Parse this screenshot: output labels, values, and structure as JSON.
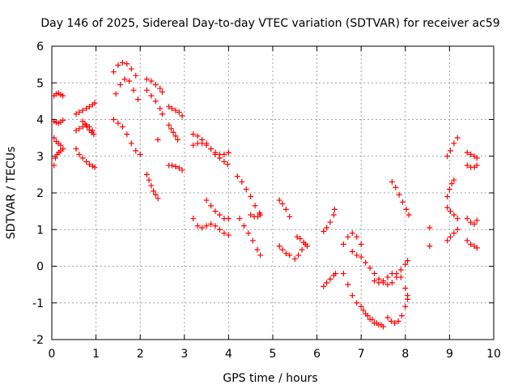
{
  "chart_data": {
    "type": "scatter",
    "title": "Day 146 of 2025, Sidereal Day-to-day VTEC variation (SDTVAR) for receiver ac59",
    "xlabel": "GPS time / hours",
    "ylabel": "SDTVAR / TECUs",
    "xlim": [
      0,
      10
    ],
    "ylim": [
      -2,
      6
    ],
    "xticks": [
      "0",
      "1",
      "2",
      "3",
      "4",
      "5",
      "6",
      "7",
      "8",
      "9",
      "10"
    ],
    "yticks": [
      "-2",
      "-1",
      "0",
      "1",
      "2",
      "3",
      "4",
      "5",
      "6"
    ],
    "grid": true,
    "marker": "plus",
    "color": "#ff0000",
    "segments": [
      {
        "x": [
          0.05,
          0.1,
          0.15,
          0.2,
          0.25
        ],
        "y": [
          4.65,
          4.7,
          4.72,
          4.68,
          4.65
        ]
      },
      {
        "x": [
          0.05,
          0.1,
          0.15,
          0.2,
          0.25
        ],
        "y": [
          3.95,
          3.92,
          3.9,
          3.93,
          3.98
        ]
      },
      {
        "x": [
          0.05,
          0.1,
          0.15,
          0.2,
          0.25
        ],
        "y": [
          3.5,
          3.4,
          3.35,
          3.3,
          3.2
        ]
      },
      {
        "x": [
          0.05,
          0.08,
          0.12,
          0.16,
          0.2,
          0.25
        ],
        "y": [
          2.75,
          2.95,
          3.05,
          3.1,
          3.15,
          3.2
        ]
      },
      {
        "x": [
          0.55,
          0.62,
          0.7,
          0.78,
          0.85,
          0.92,
          0.97
        ],
        "y": [
          4.15,
          4.2,
          4.25,
          4.3,
          4.35,
          4.4,
          4.45
        ]
      },
      {
        "x": [
          0.55,
          0.62,
          0.7,
          0.78,
          0.85,
          0.92
        ],
        "y": [
          3.7,
          3.75,
          3.8,
          3.85,
          3.8,
          3.7
        ]
      },
      {
        "x": [
          0.55,
          0.62,
          0.7,
          0.78,
          0.85,
          0.92,
          0.97
        ],
        "y": [
          3.2,
          3.05,
          2.95,
          2.85,
          2.78,
          2.73,
          2.7
        ]
      },
      {
        "x": [
          0.7,
          0.75,
          0.8,
          0.85,
          0.9,
          0.95
        ],
        "y": [
          3.95,
          3.88,
          3.8,
          3.72,
          3.65,
          3.6
        ]
      },
      {
        "x": [
          1.4,
          1.5,
          1.6,
          1.7,
          1.8,
          1.9
        ],
        "y": [
          5.3,
          5.48,
          5.55,
          5.52,
          5.38,
          5.2
        ]
      },
      {
        "x": [
          1.45,
          1.55,
          1.65,
          1.75,
          1.85,
          1.95
        ],
        "y": [
          4.7,
          4.95,
          5.1,
          5.05,
          4.8,
          4.55
        ]
      },
      {
        "x": [
          1.4,
          1.5,
          1.6,
          1.7,
          1.8,
          1.9,
          2.0
        ],
        "y": [
          4.0,
          3.9,
          3.8,
          3.6,
          3.35,
          3.15,
          3.05
        ]
      },
      {
        "x": [
          2.15,
          2.25,
          2.35,
          2.45,
          2.5
        ],
        "y": [
          5.1,
          5.05,
          4.95,
          4.85,
          4.75
        ]
      },
      {
        "x": [
          2.15,
          2.25,
          2.35,
          2.45,
          2.5
        ],
        "y": [
          4.8,
          4.65,
          4.5,
          4.3,
          4.15
        ]
      },
      {
        "x": [
          2.4
        ],
        "y": [
          3.45
        ]
      },
      {
        "x": [
          2.15,
          2.2,
          2.25,
          2.3,
          2.35,
          2.4
        ],
        "y": [
          2.5,
          2.35,
          2.2,
          2.05,
          1.95,
          1.85
        ]
      },
      {
        "x": [
          2.65,
          2.72,
          2.8,
          2.88,
          2.95
        ],
        "y": [
          4.35,
          4.3,
          4.25,
          4.2,
          4.1
        ]
      },
      {
        "x": [
          2.65,
          2.7,
          2.75,
          2.8,
          2.85
        ],
        "y": [
          3.85,
          3.75,
          3.65,
          3.55,
          3.45
        ]
      },
      {
        "x": [
          2.65,
          2.72,
          2.8,
          2.88,
          2.95
        ],
        "y": [
          2.75,
          2.75,
          2.72,
          2.68,
          2.62
        ]
      },
      {
        "x": [
          3.2,
          3.3,
          3.4,
          3.5,
          3.6,
          3.7,
          3.8,
          3.9,
          4.0
        ],
        "y": [
          3.6,
          3.55,
          3.45,
          3.35,
          3.2,
          3.1,
          3.05,
          3.05,
          3.1
        ]
      },
      {
        "x": [
          3.2,
          3.3,
          3.4,
          3.5,
          3.6,
          3.7,
          3.8,
          3.9,
          3.98
        ],
        "y": [
          3.3,
          3.35,
          3.35,
          3.3,
          3.2,
          3.05,
          2.95,
          2.85,
          2.78
        ]
      },
      {
        "x": [
          3.2,
          3.3,
          3.4,
          3.5,
          3.6,
          3.7,
          3.8,
          3.9,
          4.0
        ],
        "y": [
          1.3,
          1.1,
          1.05,
          1.1,
          1.15,
          1.1,
          1.0,
          0.9,
          0.85
        ]
      },
      {
        "x": [
          3.5,
          3.6,
          3.7,
          3.8,
          3.9,
          4.0
        ],
        "y": [
          1.8,
          1.65,
          1.5,
          1.4,
          1.3,
          1.3
        ]
      },
      {
        "x": [
          4.2,
          4.3,
          4.4,
          4.5,
          4.6,
          4.7
        ],
        "y": [
          2.45,
          2.3,
          2.1,
          1.9,
          1.65,
          1.45
        ]
      },
      {
        "x": [
          4.5,
          4.58,
          4.66,
          4.72
        ],
        "y": [
          1.4,
          1.35,
          1.35,
          1.4
        ]
      },
      {
        "x": [
          4.25,
          4.35,
          4.45,
          4.55,
          4.65,
          4.72
        ],
        "y": [
          1.3,
          1.1,
          0.9,
          0.7,
          0.45,
          0.3
        ]
      },
      {
        "x": [
          5.15,
          5.22,
          5.3,
          5.38
        ],
        "y": [
          1.8,
          1.7,
          1.55,
          1.35
        ]
      },
      {
        "x": [
          5.15,
          5.22,
          5.3,
          5.38
        ],
        "y": [
          0.55,
          0.45,
          0.35,
          0.3
        ]
      },
      {
        "x": [
          5.55,
          5.62,
          5.7,
          5.78
        ],
        "y": [
          0.8,
          0.75,
          0.65,
          0.55
        ]
      },
      {
        "x": [
          5.5,
          5.58,
          5.66,
          5.74
        ],
        "y": [
          0.2,
          0.3,
          0.45,
          0.6
        ]
      },
      {
        "x": [
          6.15,
          6.22,
          6.3,
          6.38,
          6.4
        ],
        "y": [
          0.95,
          1.05,
          1.2,
          1.4,
          1.55
        ]
      },
      {
        "x": [
          6.15,
          6.22,
          6.3,
          6.38,
          6.42
        ],
        "y": [
          -0.55,
          -0.45,
          -0.35,
          -0.25,
          -0.2
        ]
      },
      {
        "x": [
          6.6,
          6.7,
          6.8,
          6.9,
          7.0
        ],
        "y": [
          0.6,
          0.8,
          0.9,
          0.8,
          0.6
        ]
      },
      {
        "x": [
          6.6,
          6.7,
          6.8,
          6.9,
          7.0,
          7.1,
          7.2,
          7.3,
          7.4,
          7.5
        ],
        "y": [
          -0.2,
          -0.5,
          -0.8,
          -1.0,
          -1.1,
          -1.3,
          -1.45,
          -1.55,
          -1.6,
          -1.65
        ]
      },
      {
        "x": [
          6.8,
          6.9,
          7.0,
          7.1,
          7.2,
          7.3,
          7.4,
          7.5,
          7.6,
          7.7,
          7.8,
          7.9,
          8.0,
          8.05
        ],
        "y": [
          0.4,
          0.3,
          0.25,
          0.1,
          -0.05,
          -0.2,
          -0.35,
          -0.45,
          -0.5,
          -0.45,
          -0.3,
          -0.1,
          0.05,
          0.15
        ]
      },
      {
        "x": [
          7.3,
          7.4,
          7.5,
          7.6,
          7.7,
          7.8,
          7.9,
          8.0,
          8.05
        ],
        "y": [
          -0.4,
          -0.45,
          -0.4,
          -0.3,
          -0.2,
          -0.2,
          -0.3,
          -0.6,
          -0.8
        ]
      },
      {
        "x": [
          7.6,
          7.68,
          7.76,
          7.84,
          7.92,
          8.0,
          8.05
        ],
        "y": [
          -1.4,
          -1.5,
          -1.55,
          -1.5,
          -1.35,
          -1.1,
          -0.9
        ]
      },
      {
        "x": [
          7.05,
          7.15,
          7.25,
          7.35,
          7.45
        ],
        "y": [
          -1.2,
          -1.35,
          -1.45,
          -1.55,
          -1.6
        ]
      },
      {
        "x": [
          7.7,
          7.78,
          7.86,
          7.94,
          8.02,
          8.08
        ],
        "y": [
          2.3,
          2.15,
          1.95,
          1.75,
          1.55,
          1.4
        ]
      },
      {
        "x": [
          8.55
        ],
        "y": [
          1.05
        ]
      },
      {
        "x": [
          8.55
        ],
        "y": [
          0.55
        ]
      },
      {
        "x": [
          8.95,
          9.02,
          9.1,
          9.18
        ],
        "y": [
          3.0,
          3.15,
          3.35,
          3.5
        ]
      },
      {
        "x": [
          8.95,
          9.0,
          9.05,
          9.1
        ],
        "y": [
          1.9,
          2.1,
          2.25,
          2.35
        ]
      },
      {
        "x": [
          8.95,
          9.02,
          9.1,
          9.18
        ],
        "y": [
          1.6,
          1.5,
          1.4,
          1.3
        ]
      },
      {
        "x": [
          8.95,
          9.02,
          9.1,
          9.18
        ],
        "y": [
          0.7,
          0.8,
          0.9,
          1.0
        ]
      },
      {
        "x": [
          9.4,
          9.48,
          9.56,
          9.62
        ],
        "y": [
          3.1,
          3.05,
          3.0,
          2.95
        ]
      },
      {
        "x": [
          9.4,
          9.48,
          9.56,
          9.62
        ],
        "y": [
          2.75,
          2.7,
          2.7,
          2.75
        ]
      },
      {
        "x": [
          9.4,
          9.48,
          9.56,
          9.62
        ],
        "y": [
          1.3,
          1.2,
          1.15,
          1.25
        ]
      },
      {
        "x": [
          9.4,
          9.48,
          9.56,
          9.62
        ],
        "y": [
          0.7,
          0.6,
          0.55,
          0.5
        ]
      }
    ]
  }
}
